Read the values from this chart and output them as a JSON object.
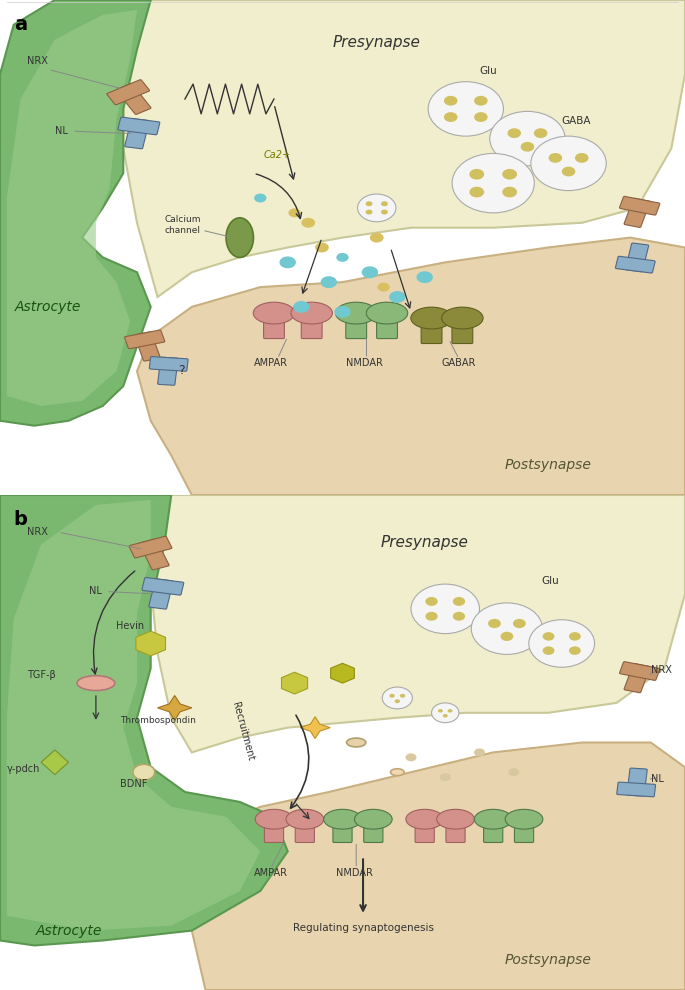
{
  "bg_color": "#ffffff",
  "panel_a": {
    "presynapse_color": "#f0eecc",
    "presynapse_border": "#c8c899",
    "astrocyte_color": "#7ab870",
    "astrocyte_border": "#5a9850",
    "astrocyte_inner_color": "#8dc87f",
    "postsynapse_color": "#e8d5b0",
    "postsynapse_border": "#c8b080",
    "synapse_gap_color": "#ffffff",
    "title_a": "a",
    "labels": {
      "presynapse": "Presynapse",
      "astrocyte": "Astrocyte",
      "postsynapse": "Postsynapse",
      "NRX": "NRX",
      "NL": "NL",
      "Glu": "Glu",
      "GABA": "GABA",
      "Ca2+": "Ca2+",
      "calcium_channel": "Calcium\nchannel",
      "AMPAR": "AMPAR",
      "NMDAR": "NMDAR",
      "GABAR": "GABAR",
      "question": "?"
    }
  },
  "panel_b": {
    "presynapse_color": "#f0eecc",
    "presynapse_border": "#c8c899",
    "astrocyte_color": "#7ab870",
    "astrocyte_border": "#5a9850",
    "postsynapse_color": "#e8d5b0",
    "postsynapse_border": "#c8b080",
    "title_b": "b",
    "labels": {
      "presynapse": "Presynapse",
      "astrocyte": "Astrocyte",
      "postsynapse": "Postsynapse",
      "NRX1": "NRX",
      "NRX2": "NRX",
      "NL": "NL",
      "NL2": "NL",
      "Glu": "Glu",
      "Hevin": "Hevin",
      "TGF_beta": "TGF-β",
      "gamma_pdch": "γ-pdch",
      "Thrombospondin": "Thrombospondin",
      "BDNF": "BDNF",
      "Recruitment": "Recruitment",
      "AMPAR": "AMPAR",
      "NMDAR": "NMDAR",
      "Regulating": "Regulating synaptogenesis"
    }
  },
  "colors": {
    "tan_receptor": "#c8956a",
    "blue_receptor": "#8aaec8",
    "green_receptor": "#8ab878",
    "pink_receptor": "#d4908a",
    "olive_receptor": "#8a8a3a",
    "vesicle_white": "#f0f0f0",
    "vesicle_border": "#aaaaaa",
    "vesicle_dots": "#c8c090",
    "cyan_dots": "#70c8d0",
    "yellow_dots": "#d8c060",
    "calcium_green": "#7a9a4a",
    "hevin_yellow": "#c8c840",
    "hevin_border": "#a0a020",
    "thrombospondin_orange": "#d8a840",
    "thrombospondin_star": "#d09030",
    "tgf_pink": "#e8a898",
    "gamma_green": "#a8c848",
    "bdnf_cream": "#e8e0b0",
    "arrow_color": "#1a1a1a",
    "text_color": "#1a1a1a",
    "label_color": "#333333"
  }
}
